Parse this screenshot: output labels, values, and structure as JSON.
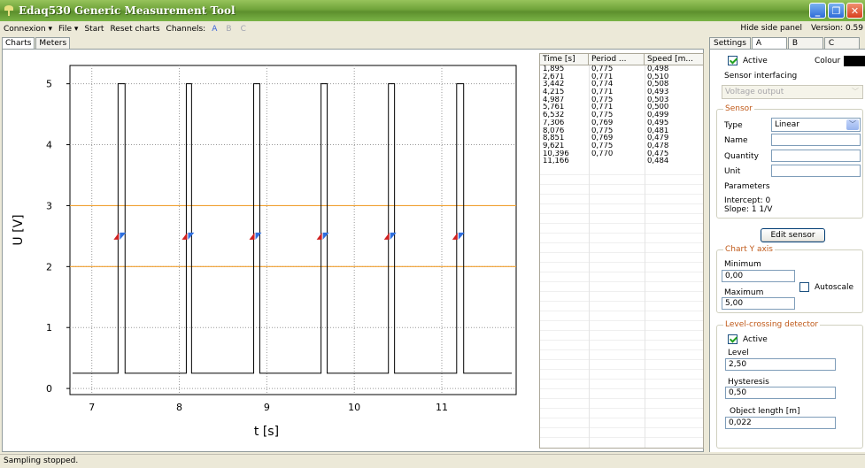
{
  "window": {
    "title": "Edaq530 Generic Measurement Tool"
  },
  "menu": {
    "connexion": "Connexion ▾",
    "file": "File ▾",
    "start": "Start",
    "reset": "Reset charts",
    "channels_label": "Channels:",
    "channels": [
      "A",
      "B",
      "C"
    ],
    "hide_panel": "Hide side panel",
    "version": "Version: 0.59"
  },
  "left_tabs": [
    "Charts",
    "Meters"
  ],
  "chart_data": {
    "type": "line",
    "xlabel": "t [s]",
    "ylabel": "U [V]",
    "xlim": [
      6.75,
      11.85
    ],
    "ylim": [
      -0.1,
      5.3
    ],
    "xticks": [
      7,
      8,
      9,
      10,
      11
    ],
    "yticks": [
      0,
      1,
      2,
      3,
      4,
      5
    ],
    "grid": true,
    "hysteresis_lines": [
      3,
      2
    ],
    "marker_level": 2.5,
    "pulses": [
      {
        "rise": 7.3,
        "fall": 7.38
      },
      {
        "rise": 8.08,
        "fall": 8.14
      },
      {
        "rise": 8.85,
        "fall": 8.92
      },
      {
        "rise": 9.62,
        "fall": 9.69
      },
      {
        "rise": 10.39,
        "fall": 10.46
      },
      {
        "rise": 11.17,
        "fall": 11.25
      }
    ],
    "baseline": 0.25,
    "high": 5.0,
    "x_start": 6.78,
    "x_end": 11.8
  },
  "table": {
    "headers": [
      "Time [s]",
      "Period ...",
      "Speed [m..."
    ],
    "rows": [
      [
        "1,895",
        "0,775",
        "0,498"
      ],
      [
        "2,671",
        "0,771",
        "0,510"
      ],
      [
        "3,442",
        "0,774",
        "0,508"
      ],
      [
        "4,215",
        "0,771",
        "0,493"
      ],
      [
        "4,987",
        "0,775",
        "0,503"
      ],
      [
        "5,761",
        "0,771",
        "0,500"
      ],
      [
        "6,532",
        "0,775",
        "0,499"
      ],
      [
        "7,306",
        "0,769",
        "0,495"
      ],
      [
        "8,076",
        "0,775",
        "0,481"
      ],
      [
        "8,851",
        "0,769",
        "0,479"
      ],
      [
        "9,621",
        "0,775",
        "0,478"
      ],
      [
        "10,396",
        "0,770",
        "0,475"
      ],
      [
        "11,166",
        "",
        "0,484"
      ]
    ]
  },
  "side_tabs": [
    "Settings",
    "A",
    "B",
    "C"
  ],
  "side": {
    "active_label": "Active",
    "colour_label": "Colour",
    "sensor_interfacing": "Sensor interfacing",
    "interfacing_value": "Voltage output",
    "sensor_group": "Sensor",
    "type_label": "Type",
    "type_value": "Linear",
    "name_label": "Name",
    "quantity_label": "Quantity",
    "unit_label": "Unit",
    "parameters_label": "Parameters",
    "params_line1": "Intercept: 0",
    "params_line2": "Slope: 1 1/V",
    "edit_sensor": "Edit sensor",
    "chart_y_group": "Chart Y axis",
    "minimum_label": "Minimum",
    "minimum_value": "0,00",
    "maximum_label": "Maximum",
    "maximum_value": "5,00",
    "autoscale_label": "Autoscale",
    "level_group": "Level-crossing detector",
    "level_active_label": "Active",
    "level_label": "Level",
    "level_value": "2,50",
    "hysteresis_label": "Hysteresis",
    "hysteresis_value": "0,50",
    "object_length_label": "Object length [m]",
    "object_length_value": "0,022"
  },
  "status": {
    "text": "Sampling stopped."
  },
  "colors": {
    "titlebar": "#6fa33a",
    "channel_a": "#3a63d8",
    "hysteresis_line": "#f0a030",
    "marker_red": "#d02020",
    "marker_blue": "#3070e0"
  }
}
